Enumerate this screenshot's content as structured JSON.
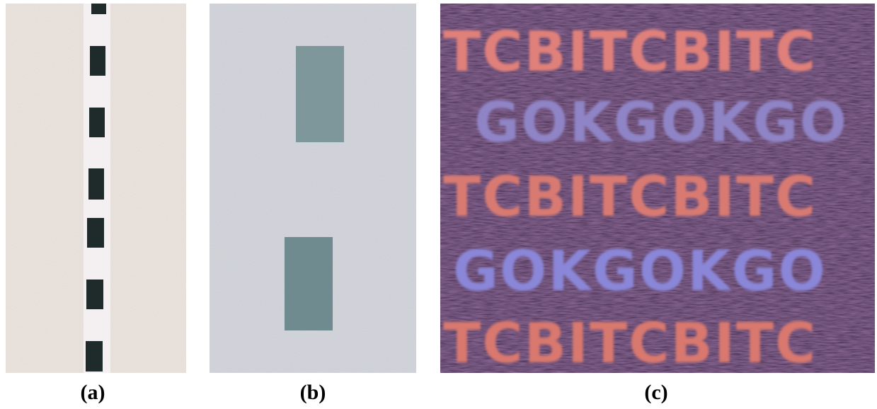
{
  "panels": {
    "a": {
      "caption": "(a)"
    },
    "b": {
      "caption": "(b)"
    },
    "c": {
      "caption": "(c)",
      "rows": [
        "TCBITCBITC",
        "GOKGOKGO",
        "TCBITCBITC",
        "GOKGOKGO",
        "TCBITCBITC"
      ]
    }
  }
}
